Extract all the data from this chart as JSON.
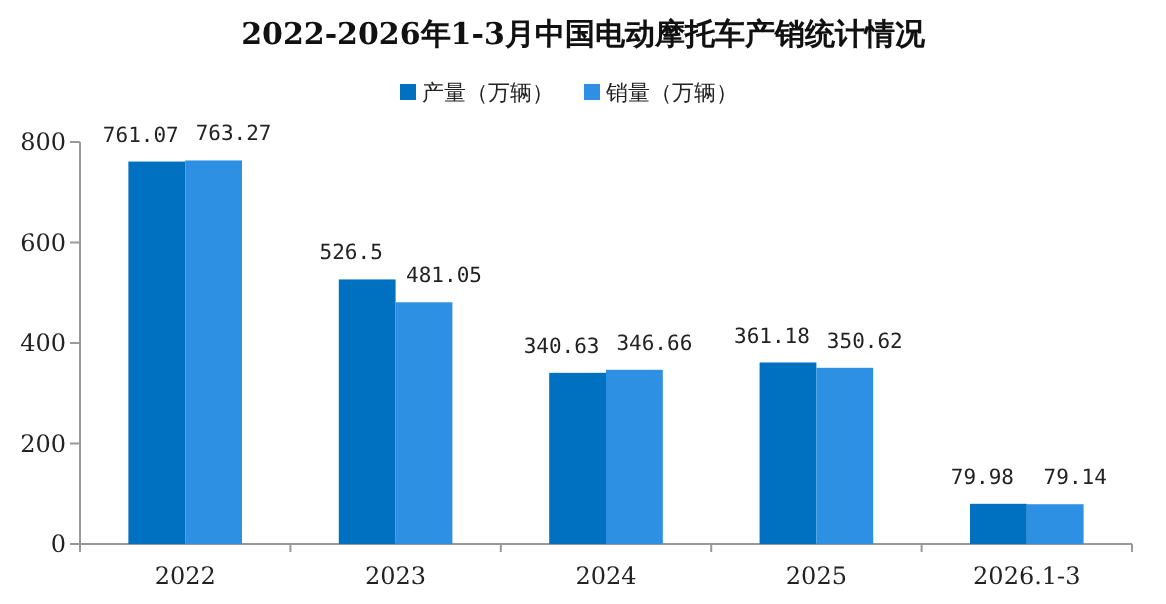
{
  "chart_data": {
    "type": "bar",
    "title": "2022-2026年1-3月中国电动摩托车产销统计情况",
    "categories": [
      "2022",
      "2023",
      "2024",
      "2025",
      "2026.1-3"
    ],
    "series": [
      {
        "name": "产量（万辆）",
        "color": "#0070c0",
        "values": [
          761.07,
          526.5,
          340.63,
          361.18,
          79.98
        ]
      },
      {
        "name": "销量（万辆）",
        "color": "#2e90e2",
        "values": [
          763.27,
          481.05,
          346.66,
          350.62,
          79.14
        ]
      }
    ],
    "ylim": [
      0,
      800
    ],
    "yticks": [
      0,
      200,
      400,
      600,
      800
    ],
    "data_labels": true,
    "grid": false,
    "legend": "top"
  }
}
